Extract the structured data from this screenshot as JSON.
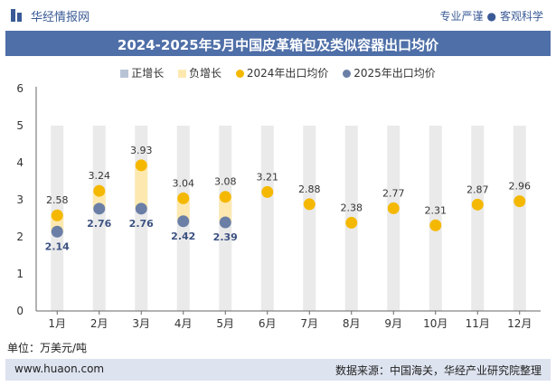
{
  "header": {
    "brand": "华经情报网",
    "tagline_left": "专业严谨",
    "tagline_right": "客观科学"
  },
  "title": "2024-2025年5月中国皮革箱包及类似容器出口均价",
  "legend": {
    "positive": "正增长",
    "negative": "负增长",
    "s2024": "2024年出口均价",
    "s2025": "2025年出口均价"
  },
  "unit": "单位：万美元/吨",
  "footer": {
    "site": "www.huaon.com",
    "source": "数据来源：中国海关，华经产业研究院整理"
  },
  "colors": {
    "accent": "#4f6fa8",
    "series2024": "#f5b800",
    "series2025": "#6b7fa6",
    "positive": "#b8c4d6",
    "negative": "#fde9b0",
    "column_bg": "#eaeaea"
  },
  "chart_data": {
    "type": "scatter",
    "categories": [
      "1月",
      "2月",
      "3月",
      "4月",
      "5月",
      "6月",
      "7月",
      "8月",
      "9月",
      "10月",
      "11月",
      "12月"
    ],
    "ylim": [
      0,
      6
    ],
    "yticks": [
      "0",
      "1",
      "2",
      "3",
      "4",
      "5",
      "6"
    ],
    "series": [
      {
        "name": "2024年出口均价",
        "values": [
          2.58,
          3.24,
          3.93,
          3.04,
          3.08,
          3.21,
          2.88,
          2.38,
          2.77,
          2.31,
          2.87,
          2.96
        ]
      },
      {
        "name": "2025年出口均价",
        "values": [
          2.14,
          2.76,
          2.76,
          2.42,
          2.39,
          null,
          null,
          null,
          null,
          null,
          null,
          null
        ]
      }
    ],
    "labels2024": [
      "2.58",
      "3.24",
      "3.93",
      "3.04",
      "3.08",
      "3.21",
      "2.88",
      "2.38",
      "2.77",
      "2.31",
      "2.87",
      "2.96"
    ],
    "labels2025": [
      "2.14",
      "2.76",
      "2.76",
      "2.42",
      "2.39",
      "",
      "",
      "",
      "",
      "",
      "",
      ""
    ]
  }
}
